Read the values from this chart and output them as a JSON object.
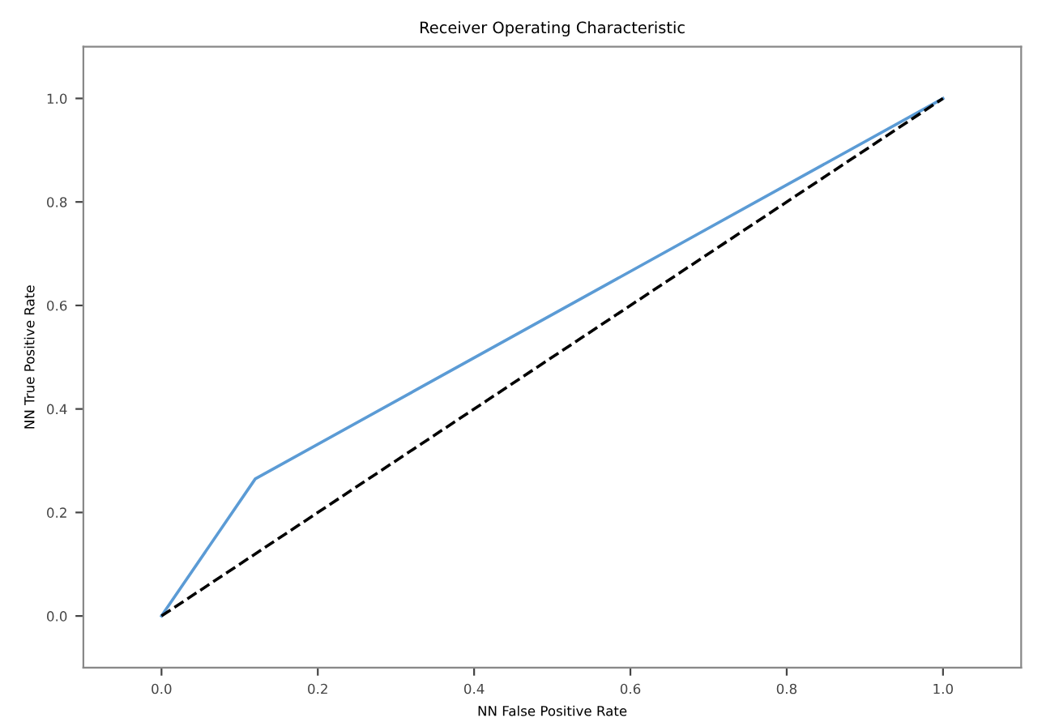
{
  "chart_data": {
    "type": "line",
    "title": "Receiver Operating Characteristic",
    "xlabel": "NN False Positive Rate",
    "ylabel": "NN True Positive Rate",
    "xlim": [
      -0.1,
      1.1
    ],
    "ylim": [
      -0.1,
      1.1
    ],
    "xticks": [
      {
        "value": 0,
        "label": "0.0"
      },
      0.2,
      0.4,
      0.6,
      0.8,
      {
        "value": 1,
        "label": "1.0"
      }
    ],
    "yticks": [
      {
        "value": 0,
        "label": "0.0"
      },
      0.2,
      0.4,
      0.6,
      0.8,
      {
        "value": 1,
        "label": "1.0"
      }
    ],
    "grid": false,
    "marker": "none",
    "series": [
      {
        "color": "#5b9bd5",
        "x": [
          0,
          0.12,
          1
        ],
        "values": [
          0,
          0.265,
          1
        ],
        "line_style": "solid"
      },
      {
        "color": "#000000",
        "x": [
          0,
          1
        ],
        "values": [
          0,
          1
        ],
        "line_style": "dashed"
      }
    ]
  }
}
